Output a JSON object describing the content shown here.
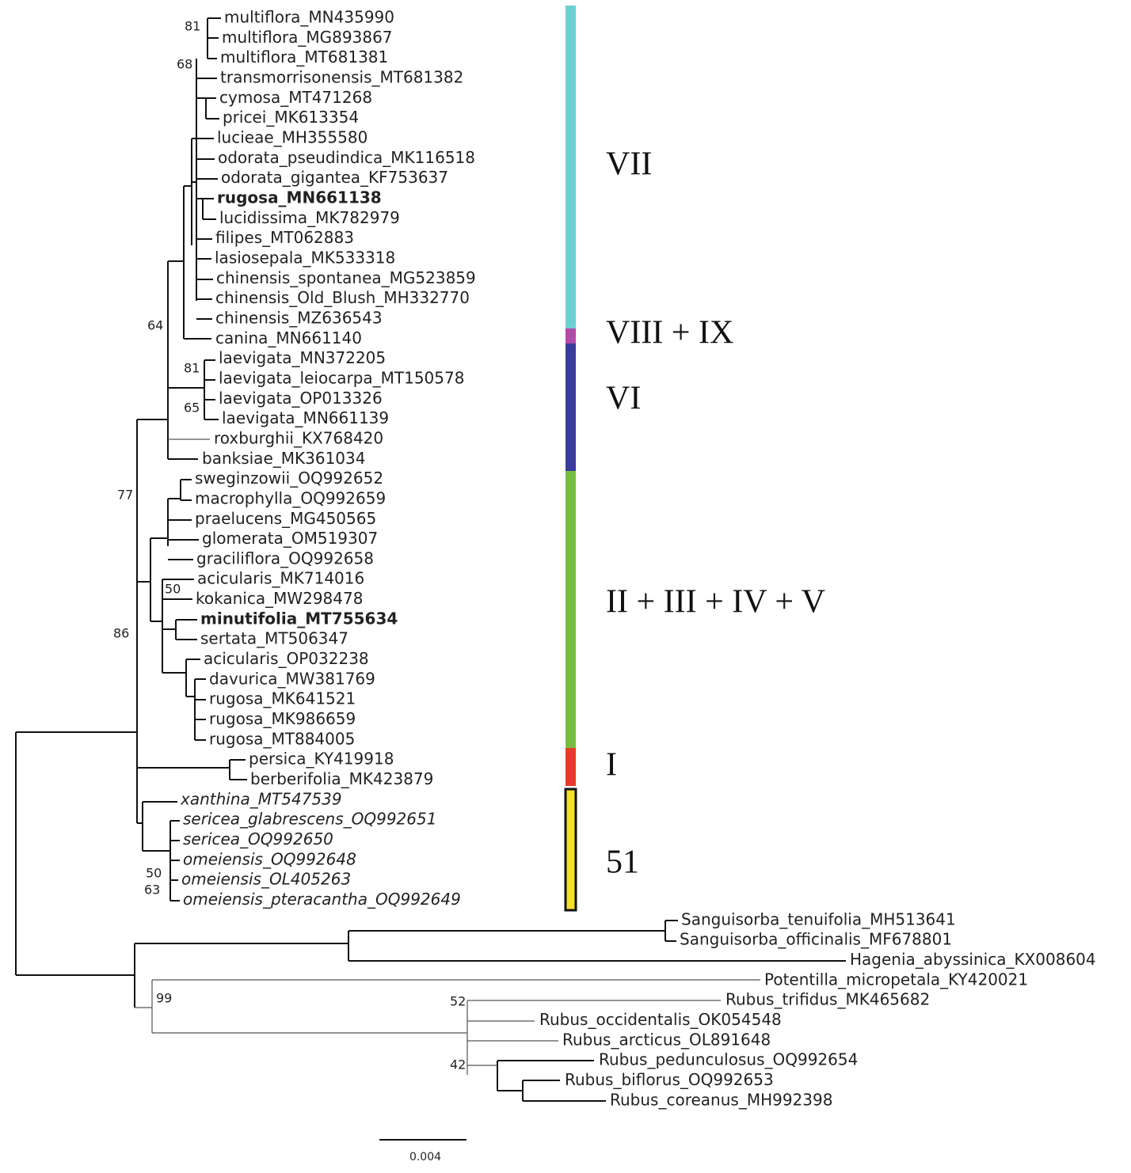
{
  "leaves": [
    "multiflora_MN435990",
    "multiflora_MG893867",
    "multiflora_MT681381",
    "transmorrisonensis_MT681382",
    "cymosa_MT471268",
    "pricei_MK613354",
    "lucieae_MH355580",
    "odorata_pseudindica_MK116518",
    "odorata_gigantea_KF753637",
    "rugosa_MN661138",
    "lucidissima_MK782979",
    "filipes_MT062883",
    "lasiosepala_MK533318",
    "chinensis_spontanea_MG523859",
    "chinensis_Old_Blush_MH332770",
    "chinensis_MZ636543",
    "canina_MN661140",
    "laevigata_MN372205",
    "laevigata_leiocarpa_MT150578",
    "laevigata_OP013326",
    "laevigata_MN661139",
    "roxburghii_KX768420",
    "banksiae_MK361034",
    "sweginzowii_OQ992652",
    "macrophylla_OQ992659",
    "praelucens_MG450565",
    "glomerata_OM519307",
    "graciliflora_OQ992658",
    "acicularis_MK714016",
    "kokanica_MW298478",
    "minutifolia_MT755634",
    "sertata_MT506347",
    "acicularis_OP032238",
    "davurica_MW381769",
    "rugosa_MK641521",
    "rugosa_MK986659",
    "rugosa_MT884005",
    "persica_KY419918",
    "berberifolia_MK423879",
    "xanthina_MT547539",
    "sericea_glabrescens_OQ992651",
    "sericea_OQ992650",
    "omeiensis_OQ992648",
    "omeiensis_OL405263",
    "omeiensis_pteracantha_OQ992649",
    "Sanguisorba_tenuifolia_MH513641",
    "Sanguisorba_officinalis_MF678801",
    "Hagenia_abyssinica_KX008604",
    "Potentilla_micropetala_KY420021",
    "Rubus_trifidus_MK465682",
    "Rubus_occidentalis_OK054548",
    "Rubus_arcticus_OL891648",
    "Rubus_pedunculosus_OQ992654",
    "Rubus_biflorus_OQ992653",
    "Rubus_coreanus_MH992398"
  ],
  "support": [
    81,
    68,
    64,
    81,
    65,
    77,
    50,
    86,
    50,
    63,
    99,
    52,
    42
  ],
  "clades": [
    {
      "label": "VII",
      "color": "#6ecfcf"
    },
    {
      "label": "VIII + IX",
      "color": "#b24aa7"
    },
    {
      "label": "VI",
      "color": "#3a3b9a"
    },
    {
      "label": "II + III + IV + V",
      "color": "#77bd44"
    },
    {
      "label": "I",
      "color": "#e8392b"
    },
    {
      "label": "51",
      "color": "#f5e02a"
    }
  ],
  "scale_bar": 0.004
}
